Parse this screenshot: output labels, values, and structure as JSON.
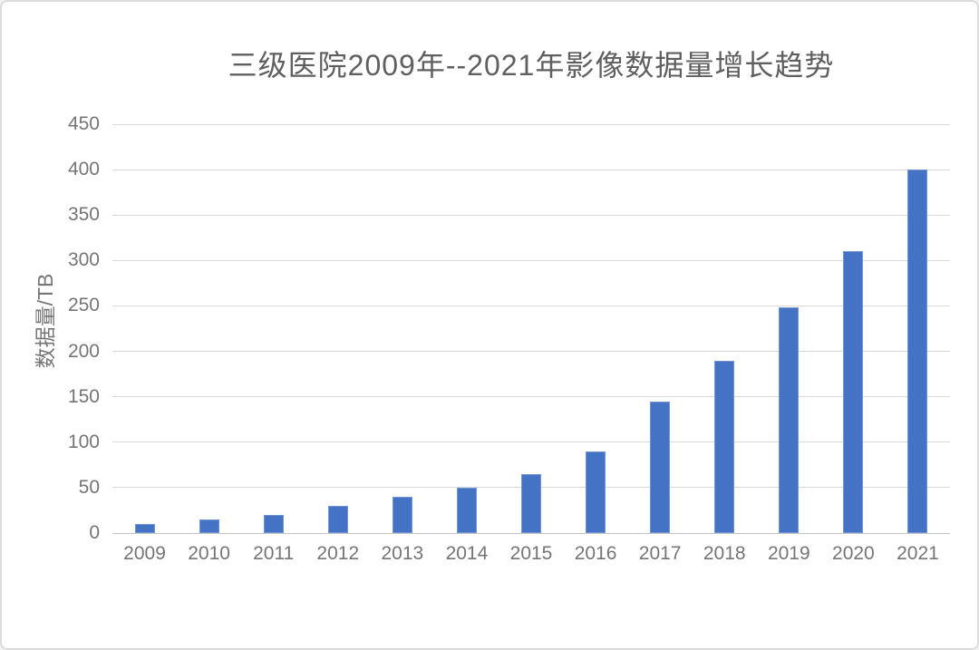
{
  "chart_data": {
    "type": "bar",
    "title": "三级医院2009年--2021年影像数据量增长趋势",
    "xlabel": "",
    "ylabel": "数据量/TB",
    "categories": [
      "2009",
      "2010",
      "2011",
      "2012",
      "2013",
      "2014",
      "2015",
      "2016",
      "2017",
      "2018",
      "2019",
      "2020",
      "2021"
    ],
    "values": [
      10,
      15,
      20,
      30,
      40,
      50,
      65,
      90,
      145,
      190,
      248,
      310,
      400
    ],
    "ylim": [
      0,
      450
    ],
    "ytick_step": 50,
    "yticks": [
      "0",
      "50",
      "100",
      "150",
      "200",
      "250",
      "300",
      "350",
      "400",
      "450"
    ],
    "grid": true,
    "legend": false,
    "colors": {
      "bar": "#4472C4",
      "gridline": "#d9d9d9",
      "axis_line": "#c3c3c3",
      "title_text": "#5f5f5f",
      "tick_text": "#757575",
      "frame_border": "#dcdcdc",
      "background": "#ffffff"
    }
  }
}
